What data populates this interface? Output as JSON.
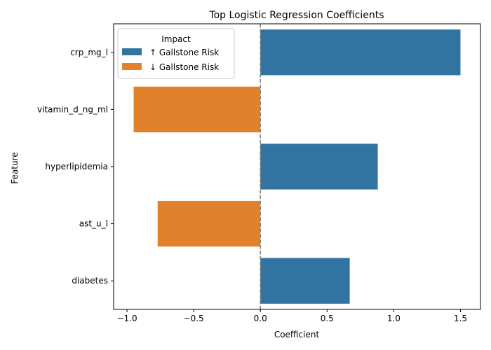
{
  "chart_data": {
    "type": "bar",
    "orientation": "horizontal",
    "title": "Top Logistic Regression Coefficients",
    "xlabel": "Coefficient",
    "ylabel": "Feature",
    "xlim": [
      -1.1,
      1.65
    ],
    "xticks": [
      -1.0,
      -0.5,
      0.0,
      0.5,
      1.0,
      1.5
    ],
    "xtick_labels": [
      "−1.0",
      "−0.5",
      "0.0",
      "0.5",
      "1.0",
      "1.5"
    ],
    "categories": [
      "crp_mg_l",
      "vitamin_d_ng_ml",
      "hyperlipidemia",
      "ast_u_l",
      "diabetes"
    ],
    "values": [
      1.5,
      -0.95,
      0.88,
      -0.77,
      0.67
    ],
    "impact": [
      "up",
      "down",
      "up",
      "down",
      "up"
    ],
    "reference_line": 0.0,
    "grid": false,
    "legend": {
      "title": "Impact",
      "placement": "top-left",
      "entries": [
        {
          "key": "up",
          "label": "↑ Gallstone Risk",
          "color": "#3274a1"
        },
        {
          "key": "down",
          "label": "↓ Gallstone Risk",
          "color": "#e1812c"
        }
      ]
    }
  }
}
